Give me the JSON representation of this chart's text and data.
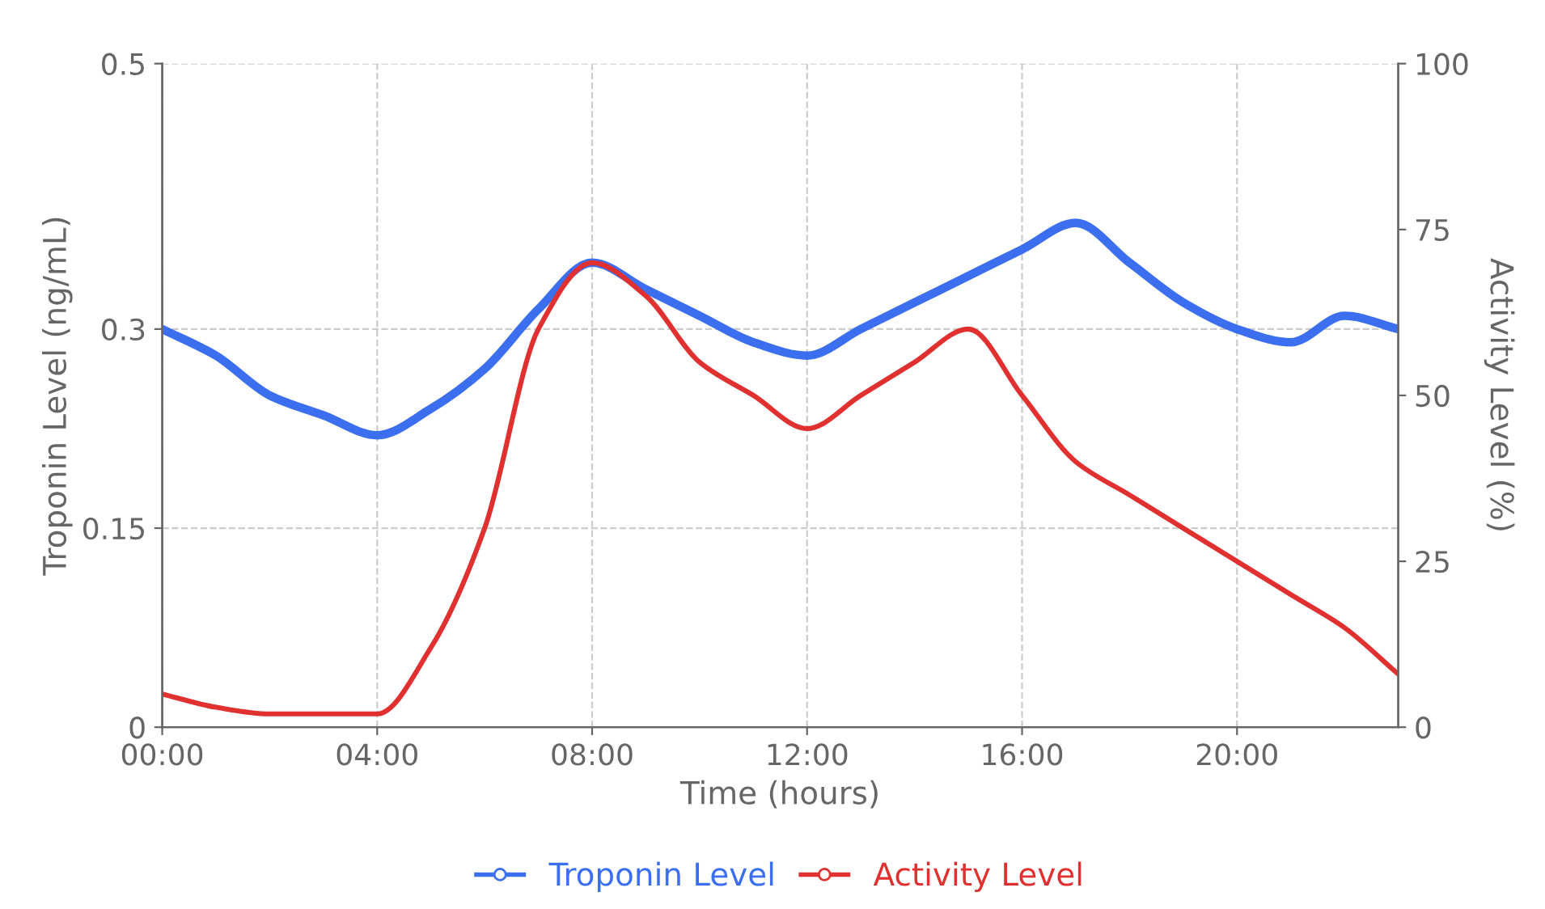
{
  "chart_data": {
    "type": "line",
    "xlabel": "Time (hours)",
    "ylabel": "Troponin Level (ng/mL)",
    "y2label": "Activity Level (%)",
    "x": [
      0,
      1,
      2,
      3,
      4,
      5,
      6,
      7,
      8,
      9,
      10,
      11,
      12,
      13,
      14,
      15,
      16,
      17,
      18,
      19,
      20,
      21,
      22,
      23
    ],
    "xlim": [
      0,
      23
    ],
    "xticks": [
      {
        "value": 0,
        "label": "00:00"
      },
      {
        "value": 4,
        "label": "04:00"
      },
      {
        "value": 8,
        "label": "08:00"
      },
      {
        "value": 12,
        "label": "12:00"
      },
      {
        "value": 16,
        "label": "16:00"
      },
      {
        "value": 20,
        "label": "20:00"
      }
    ],
    "ylim": [
      0,
      0.5
    ],
    "yticks": [
      0,
      0.15,
      0.3,
      0.5
    ],
    "y2lim": [
      0,
      100
    ],
    "y2ticks": [
      0,
      25,
      50,
      75,
      100
    ],
    "series": [
      {
        "name": "Troponin Level",
        "color": "#3b6ff0",
        "values": [
          0.3,
          0.28,
          0.25,
          0.235,
          0.22,
          0.24,
          0.27,
          0.315,
          0.35,
          0.33,
          0.31,
          0.29,
          0.28,
          0.3,
          0.32,
          0.34,
          0.36,
          0.38,
          0.35,
          0.32,
          0.3,
          0.29,
          0.31,
          0.3
        ]
      },
      {
        "name": "Activity Level",
        "color": "#e03030",
        "axis": "y2",
        "values": [
          5,
          3,
          2,
          2,
          2,
          12,
          30,
          60,
          70,
          65,
          55,
          50,
          45,
          50,
          55,
          60,
          50,
          40,
          35,
          30,
          25,
          20,
          15,
          8
        ]
      }
    ],
    "grid": true,
    "legend": "bottom"
  }
}
